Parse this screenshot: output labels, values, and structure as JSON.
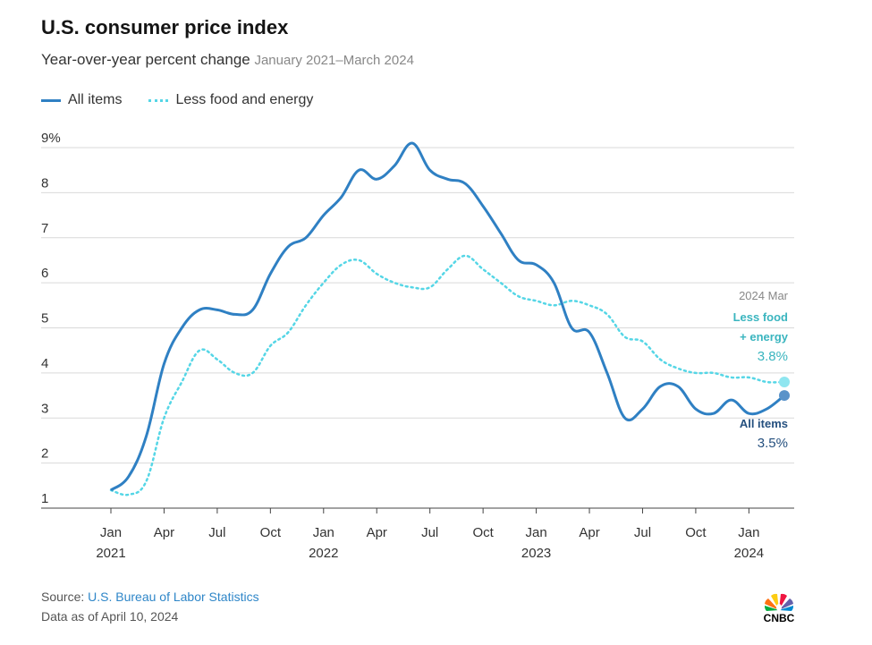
{
  "header": {
    "title": "U.S. consumer price index",
    "subtitle": "Year-over-year percent change",
    "date_range": "January 2021–March 2024"
  },
  "footer": {
    "source_prefix": "Source: ",
    "source_name": "U.S. Bureau of Labor Statistics",
    "data_as_of": "Data as of April 10, 2024"
  },
  "logo": {
    "text": "CNBC"
  },
  "colors": {
    "all_items": "#2f80c3",
    "core": "#55d6e6",
    "grid": "#d9d9d9",
    "axis": "#444444",
    "annotation_core": "#3ab5bf",
    "annotation_all": "#25507f"
  },
  "annotations": {
    "date": "2024 Mar",
    "core_label_line1": "Less food",
    "core_label_line2": "+ energy",
    "core_value": "3.8%",
    "all_label": "All items",
    "all_value": "3.5%"
  },
  "chart_data": {
    "type": "line",
    "title": "U.S. consumer price index",
    "subtitle": "Year-over-year percent change",
    "x": [
      "2021-01",
      "2021-02",
      "2021-03",
      "2021-04",
      "2021-05",
      "2021-06",
      "2021-07",
      "2021-08",
      "2021-09",
      "2021-10",
      "2021-11",
      "2021-12",
      "2022-01",
      "2022-02",
      "2022-03",
      "2022-04",
      "2022-05",
      "2022-06",
      "2022-07",
      "2022-08",
      "2022-09",
      "2022-10",
      "2022-11",
      "2022-12",
      "2023-01",
      "2023-02",
      "2023-03",
      "2023-04",
      "2023-05",
      "2023-06",
      "2023-07",
      "2023-08",
      "2023-09",
      "2023-10",
      "2023-11",
      "2023-12",
      "2024-01",
      "2024-02",
      "2024-03"
    ],
    "series": [
      {
        "name": "All items",
        "values": [
          1.4,
          1.7,
          2.6,
          4.2,
          5.0,
          5.4,
          5.4,
          5.3,
          5.4,
          6.2,
          6.8,
          7.0,
          7.5,
          7.9,
          8.5,
          8.3,
          8.6,
          9.1,
          8.5,
          8.3,
          8.2,
          7.7,
          7.1,
          6.5,
          6.4,
          6.0,
          5.0,
          4.9,
          4.0,
          3.0,
          3.2,
          3.7,
          3.7,
          3.2,
          3.1,
          3.4,
          3.1,
          3.2,
          3.5
        ]
      },
      {
        "name": "Less food and energy",
        "values": [
          1.4,
          1.3,
          1.6,
          3.0,
          3.8,
          4.5,
          4.3,
          4.0,
          4.0,
          4.6,
          4.9,
          5.5,
          6.0,
          6.4,
          6.5,
          6.2,
          6.0,
          5.9,
          5.9,
          6.3,
          6.6,
          6.3,
          6.0,
          5.7,
          5.6,
          5.5,
          5.6,
          5.5,
          5.3,
          4.8,
          4.7,
          4.3,
          4.1,
          4.0,
          4.0,
          3.9,
          3.9,
          3.8,
          3.8
        ]
      }
    ],
    "ylim": [
      1,
      9
    ],
    "yticks": [
      "1",
      "2",
      "3",
      "4",
      "5",
      "6",
      "7",
      "8",
      "9%"
    ],
    "xticks": [
      {
        "month": "Jan",
        "year": "2021",
        "x": "2021-01"
      },
      {
        "month": "Apr",
        "year": "",
        "x": "2021-04"
      },
      {
        "month": "Jul",
        "year": "",
        "x": "2021-07"
      },
      {
        "month": "Oct",
        "year": "",
        "x": "2021-10"
      },
      {
        "month": "Jan",
        "year": "2022",
        "x": "2022-01"
      },
      {
        "month": "Apr",
        "year": "",
        "x": "2022-04"
      },
      {
        "month": "Jul",
        "year": "",
        "x": "2022-07"
      },
      {
        "month": "Oct",
        "year": "",
        "x": "2022-10"
      },
      {
        "month": "Jan",
        "year": "2023",
        "x": "2023-01"
      },
      {
        "month": "Apr",
        "year": "",
        "x": "2023-04"
      },
      {
        "month": "Jul",
        "year": "",
        "x": "2023-07"
      },
      {
        "month": "Oct",
        "year": "",
        "x": "2023-10"
      },
      {
        "month": "Jan",
        "year": "2024",
        "x": "2024-01"
      }
    ],
    "legend_position": "top-left",
    "grid": true
  }
}
